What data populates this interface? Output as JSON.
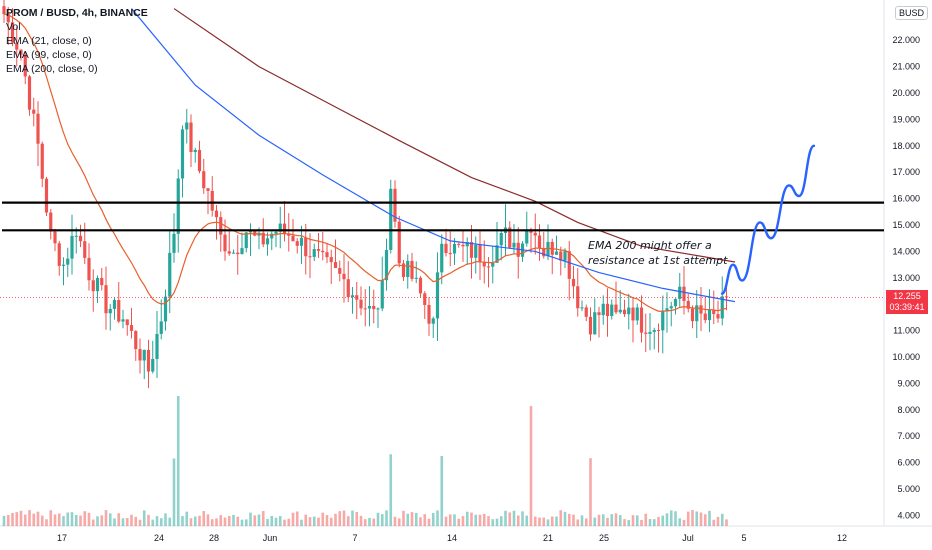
{
  "legend": {
    "title": "PROM / BUSD, 4h, BINANCE",
    "vol": "Vol",
    "ema21": "EMA (21, close, 0)",
    "ema99": "EMA (99, close, 0)",
    "ema200": "EMA (200, close, 0)"
  },
  "unit": "BUSD",
  "price_label": {
    "price": "12.255",
    "countdown": "03:39:41"
  },
  "annotation": [
    "EMA 200 might offer a",
    "resistance at 1st attempt"
  ],
  "colors": {
    "up": "#26a69a",
    "down": "#ef5350",
    "ema21": "#e8602c",
    "ema99": "#2962ff",
    "ema200": "#8b2a2a",
    "projection": "#2962ff",
    "price_tag": "#f23645"
  },
  "chart_data": {
    "type": "candlestick",
    "y_axis": {
      "min": 3.6,
      "max": 23.3,
      "ticks": [
        "4.000",
        "5.000",
        "6.000",
        "7.000",
        "8.000",
        "9.000",
        "10.000",
        "11.000",
        "12.000",
        "13.000",
        "14.000",
        "15.000",
        "16.000",
        "17.000",
        "18.000",
        "19.000",
        "20.000",
        "21.000",
        "22.000"
      ]
    },
    "x_axis": {
      "labels": [
        "17",
        "24",
        "28",
        "Jun",
        "7",
        "14",
        "21",
        "25",
        "Jul",
        "5",
        "12"
      ]
    },
    "resistance_levels": [
      15.85,
      14.8
    ],
    "last_price": 12.255,
    "projection_path": [
      {
        "x": "Jul",
        "y": 12.4
      },
      {
        "x": "Jul",
        "y": 13.5
      },
      {
        "x": "Jul",
        "y": 12.9
      },
      {
        "x": "5",
        "y": 15.1
      },
      {
        "x": "5",
        "y": 14.5
      },
      {
        "x": "5",
        "y": 16.5
      },
      {
        "x": "5",
        "y": 16.1
      },
      {
        "x": "12",
        "y": 18.0
      }
    ],
    "anchors": [
      {
        "t": 0,
        "c": 23.0
      },
      {
        "t": 4,
        "c": 21.5
      },
      {
        "t": 8,
        "c": 18.0
      },
      {
        "t": 11,
        "c": 14.5
      },
      {
        "t": 14,
        "c": 13.5
      },
      {
        "t": 17,
        "c": 14.9
      },
      {
        "t": 20,
        "c": 13.2
      },
      {
        "t": 24,
        "c": 12.0
      },
      {
        "t": 28,
        "c": 11.5
      },
      {
        "t": 31,
        "c": 10.5
      },
      {
        "t": 34,
        "c": 9.5
      },
      {
        "t": 37,
        "c": 11.5
      },
      {
        "t": 40,
        "c": 14.8
      },
      {
        "t": 42,
        "c": 19.0
      },
      {
        "t": 45,
        "c": 17.5
      },
      {
        "t": 48,
        "c": 16.2
      },
      {
        "t": 51,
        "c": 14.5
      },
      {
        "t": 54,
        "c": 14.0
      },
      {
        "t": 57,
        "c": 14.8
      },
      {
        "t": 60,
        "c": 14.3
      },
      {
        "t": 64,
        "c": 14.8
      },
      {
        "t": 68,
        "c": 14.6
      },
      {
        "t": 72,
        "c": 14.0
      },
      {
        "t": 76,
        "c": 13.4
      },
      {
        "t": 80,
        "c": 12.9
      },
      {
        "t": 84,
        "c": 12.1
      },
      {
        "t": 87,
        "c": 11.6
      },
      {
        "t": 89,
        "c": 12.5
      },
      {
        "t": 91,
        "c": 16.5
      },
      {
        "t": 93,
        "c": 13.6
      },
      {
        "t": 96,
        "c": 13.0
      },
      {
        "t": 99,
        "c": 12.0
      },
      {
        "t": 101,
        "c": 11.2
      },
      {
        "t": 103,
        "c": 14.5
      },
      {
        "t": 106,
        "c": 14.1
      },
      {
        "t": 110,
        "c": 14.0
      },
      {
        "t": 114,
        "c": 13.8
      },
      {
        "t": 118,
        "c": 14.6
      },
      {
        "t": 121,
        "c": 14.2
      },
      {
        "t": 124,
        "c": 15.1
      },
      {
        "t": 127,
        "c": 14.0
      },
      {
        "t": 130,
        "c": 14.3
      },
      {
        "t": 132,
        "c": 13.9
      },
      {
        "t": 135,
        "c": 12.2
      },
      {
        "t": 138,
        "c": 11.3
      },
      {
        "t": 141,
        "c": 11.8
      },
      {
        "t": 144,
        "c": 11.5
      },
      {
        "t": 147,
        "c": 12.0
      },
      {
        "t": 150,
        "c": 11.3
      },
      {
        "t": 153,
        "c": 11.2
      },
      {
        "t": 156,
        "c": 11.9
      },
      {
        "t": 159,
        "c": 12.3
      },
      {
        "t": 162,
        "c": 11.7
      },
      {
        "t": 165,
        "c": 11.4
      },
      {
        "t": 168,
        "c": 11.5
      },
      {
        "t": 170,
        "c": 12.255
      }
    ],
    "ema200_path": [
      {
        "t": 40,
        "c": 23.2
      },
      {
        "t": 60,
        "c": 21.0
      },
      {
        "t": 80,
        "c": 19.3
      },
      {
        "t": 93,
        "c": 18.2
      },
      {
        "t": 110,
        "c": 16.8
      },
      {
        "t": 125,
        "c": 15.9
      },
      {
        "t": 135,
        "c": 15.1
      },
      {
        "t": 150,
        "c": 14.2
      },
      {
        "t": 172,
        "c": 13.6
      }
    ],
    "ema99_path": [
      {
        "t": 30,
        "c": 23.2
      },
      {
        "t": 45,
        "c": 20.3
      },
      {
        "t": 60,
        "c": 18.4
      },
      {
        "t": 75,
        "c": 16.9
      },
      {
        "t": 92,
        "c": 15.3
      },
      {
        "t": 105,
        "c": 14.4
      },
      {
        "t": 125,
        "c": 14.0
      },
      {
        "t": 140,
        "c": 13.2
      },
      {
        "t": 155,
        "c": 12.6
      },
      {
        "t": 172,
        "c": 12.1
      }
    ]
  }
}
